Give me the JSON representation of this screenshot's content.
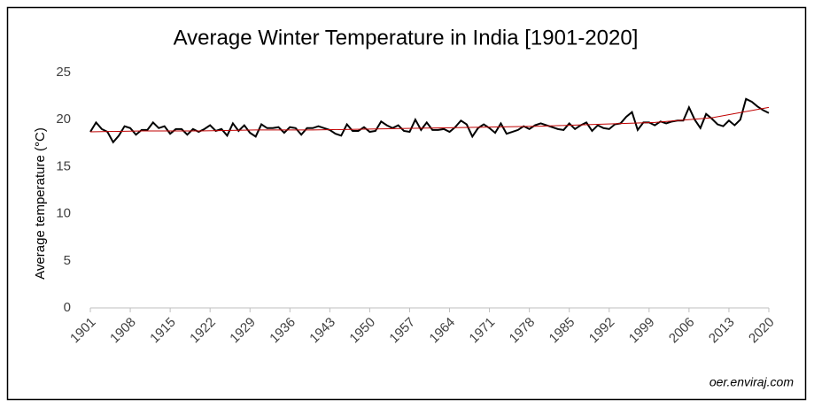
{
  "chart_data": {
    "type": "line",
    "title": "Average Winter Temperature in India [1901-2020]",
    "y_label": "Average temperature (°C)",
    "annotation": "oer.enviraj.com",
    "x": [
      1901,
      1902,
      1903,
      1904,
      1905,
      1906,
      1907,
      1908,
      1909,
      1910,
      1911,
      1912,
      1913,
      1914,
      1915,
      1916,
      1917,
      1918,
      1919,
      1920,
      1921,
      1922,
      1923,
      1924,
      1925,
      1926,
      1927,
      1928,
      1929,
      1930,
      1931,
      1932,
      1933,
      1934,
      1935,
      1936,
      1937,
      1938,
      1939,
      1940,
      1941,
      1942,
      1943,
      1944,
      1945,
      1946,
      1947,
      1948,
      1949,
      1950,
      1951,
      1952,
      1953,
      1954,
      1955,
      1956,
      1957,
      1958,
      1959,
      1960,
      1961,
      1962,
      1963,
      1964,
      1965,
      1966,
      1967,
      1968,
      1969,
      1970,
      1971,
      1972,
      1973,
      1974,
      1975,
      1976,
      1977,
      1978,
      1979,
      1980,
      1981,
      1982,
      1983,
      1984,
      1985,
      1986,
      1987,
      1988,
      1989,
      1990,
      1991,
      1992,
      1993,
      1994,
      1995,
      1996,
      1997,
      1998,
      1999,
      2000,
      2001,
      2002,
      2003,
      2004,
      2005,
      2006,
      2007,
      2008,
      2009,
      2010,
      2011,
      2012,
      2013,
      2014,
      2015,
      2016,
      2017,
      2018,
      2019,
      2020
    ],
    "series": [
      {
        "color": "#000000",
        "values": [
          18.7,
          19.7,
          19.0,
          18.7,
          17.6,
          18.3,
          19.3,
          19.1,
          18.4,
          18.9,
          18.9,
          19.7,
          19.1,
          19.3,
          18.5,
          19.0,
          19.0,
          18.4,
          19.0,
          18.7,
          19.0,
          19.4,
          18.8,
          19.0,
          18.3,
          19.6,
          18.8,
          19.4,
          18.6,
          18.2,
          19.5,
          19.1,
          19.1,
          19.2,
          18.6,
          19.2,
          19.1,
          18.4,
          19.1,
          19.1,
          19.3,
          19.1,
          18.9,
          18.5,
          18.3,
          19.5,
          18.8,
          18.8,
          19.2,
          18.7,
          18.8,
          19.8,
          19.4,
          19.1,
          19.4,
          18.8,
          18.7,
          20.0,
          18.9,
          19.7,
          18.9,
          18.9,
          19.0,
          18.7,
          19.2,
          19.9,
          19.5,
          18.2,
          19.1,
          19.5,
          19.1,
          18.6,
          19.6,
          18.5,
          18.7,
          18.9,
          19.3,
          19.0,
          19.4,
          19.6,
          19.4,
          19.2,
          19.0,
          18.9,
          19.6,
          19.0,
          19.4,
          19.7,
          18.8,
          19.4,
          19.1,
          19.0,
          19.5,
          19.6,
          20.3,
          20.8,
          18.9,
          19.7,
          19.7,
          19.4,
          19.8,
          19.6,
          19.8,
          19.9,
          19.9,
          21.3,
          20.0,
          19.1,
          20.6,
          20.1,
          19.5,
          19.3,
          19.9,
          19.4,
          20.0,
          22.2,
          21.9,
          21.4,
          21.0,
          20.7
        ]
      },
      {
        "color": "#c00000",
        "x": [
          1901,
          1910,
          1920,
          1930,
          1940,
          1950,
          1960,
          1970,
          1980,
          1990,
          2000,
          2010,
          2020
        ],
        "values": [
          18.7,
          18.8,
          18.8,
          18.9,
          18.9,
          19.0,
          19.1,
          19.2,
          19.3,
          19.5,
          19.7,
          20.2,
          21.3
        ]
      }
    ],
    "xlim": [
      1901,
      2020
    ],
    "xticks": [
      1901,
      1908,
      1915,
      1922,
      1929,
      1936,
      1943,
      1950,
      1957,
      1964,
      1971,
      1978,
      1985,
      1992,
      1999,
      2006,
      2013,
      2020
    ],
    "ylim": [
      0,
      25
    ],
    "yticks": [
      0,
      5,
      10,
      15,
      20,
      25
    ]
  }
}
